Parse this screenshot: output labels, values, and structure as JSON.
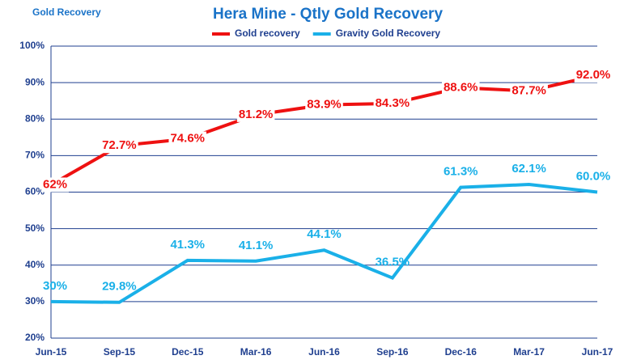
{
  "chart_data": {
    "type": "line",
    "title": "Hera  Mine - Qtly Gold Recovery",
    "y_label": "Gold Recovery",
    "categories": [
      "Jun-15",
      "Sep-15",
      "Dec-15",
      "Mar-16",
      "Jun-16",
      "Sep-16",
      "Dec-16",
      "Mar-17",
      "Jun-17"
    ],
    "series": [
      {
        "name": "Gold recovery",
        "color": "#ee1111",
        "values": [
          62,
          72.7,
          74.6,
          81.2,
          83.9,
          84.3,
          88.6,
          87.7,
          92.0
        ],
        "value_labels": [
          "62%",
          "72.7%",
          "74.6%",
          "81.2%",
          "83.9%",
          "84.3%",
          "88.6%",
          "87.7%",
          "92.0%"
        ]
      },
      {
        "name": "Gravity Gold Recovery",
        "color": "#1ab0e8",
        "values": [
          30,
          29.8,
          41.3,
          41.1,
          44.1,
          36.5,
          61.3,
          62.1,
          60.0
        ],
        "value_labels": [
          "30%",
          "29.8%",
          "41.3%",
          "41.1%",
          "44.1%",
          "36.5%",
          "61.3%",
          "62.1%",
          "60.0%"
        ]
      }
    ],
    "ylim": [
      20,
      100
    ],
    "yticks": [
      {
        "value": 20,
        "label": "20%"
      },
      {
        "value": 30,
        "label": "30%"
      },
      {
        "value": 40,
        "label": "40%"
      },
      {
        "value": 50,
        "label": "50%"
      },
      {
        "value": 60,
        "label": "60%"
      },
      {
        "value": 70,
        "label": "70%"
      },
      {
        "value": 80,
        "label": "80%"
      },
      {
        "value": 90,
        "label": "90%"
      },
      {
        "value": 100,
        "label": "100%"
      }
    ],
    "grid": true
  }
}
